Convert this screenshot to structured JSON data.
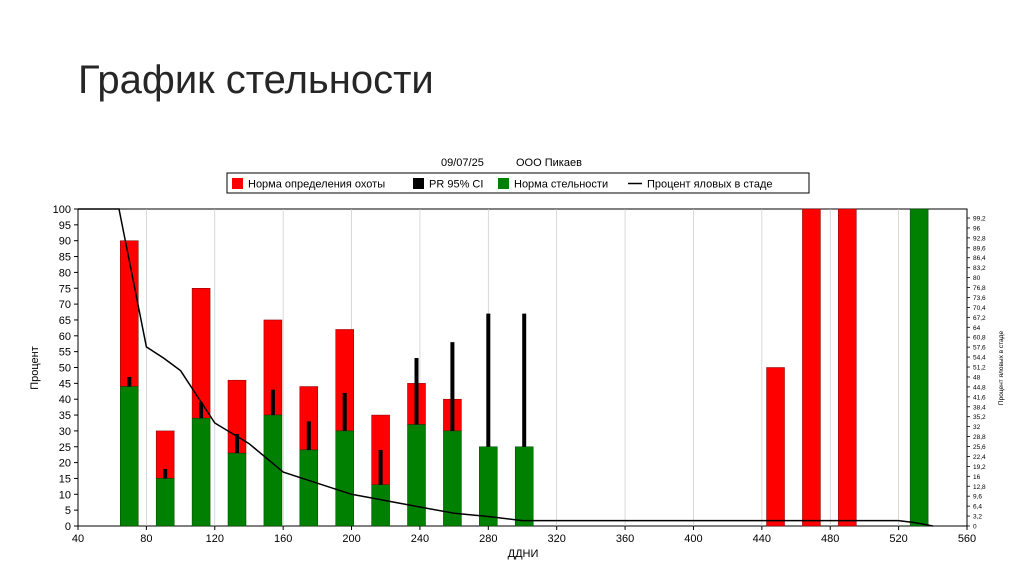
{
  "slide": {
    "title": "График стельности"
  },
  "colors": {
    "red": "#ff0000",
    "green": "#008000",
    "black": "#000000",
    "grid": "#c8c8c8"
  },
  "chart_data": {
    "type": "bar",
    "header": {
      "date": "09/07/25",
      "company": "ООО Пикаев"
    },
    "legend": [
      {
        "name": "Норма определения охоты",
        "color": "#ff0000",
        "kind": "box"
      },
      {
        "name": "PR 95% CI",
        "color": "#000000",
        "kind": "box"
      },
      {
        "name": "Норма стельности",
        "color": "#008000",
        "kind": "box"
      },
      {
        "name": "Процент яловых в стаде",
        "color": "#000000",
        "kind": "line"
      }
    ],
    "xlabel": "ДДНИ",
    "ylabel": "Процент",
    "ylabel_right": "Процент яловых в стаде",
    "xlim": [
      40,
      560
    ],
    "ylim": [
      0,
      100
    ],
    "x_ticks": [
      40,
      80,
      120,
      160,
      200,
      240,
      280,
      320,
      360,
      400,
      440,
      480,
      520,
      560
    ],
    "y_ticks": [
      0,
      5,
      10,
      15,
      20,
      25,
      30,
      35,
      40,
      45,
      50,
      55,
      60,
      65,
      70,
      75,
      80,
      85,
      90,
      95,
      100
    ],
    "right_ticks": [
      "0",
      "3,2",
      "6,4",
      "9,6",
      "12,8",
      "16",
      "19,2",
      "22,4",
      "25,6",
      "28,8",
      "32",
      "35,2",
      "38,4",
      "41,6",
      "44,8",
      "48",
      "51,2",
      "54,4",
      "57,6",
      "60,8",
      "64",
      "67,2",
      "70,4",
      "73,6",
      "76,8",
      "80",
      "83,2",
      "86,4",
      "89,6",
      "92,8",
      "96",
      "99,2"
    ],
    "bars": [
      {
        "x": 70,
        "heat_rate": 90,
        "preg_rate": 44,
        "ci": [
          44,
          47
        ]
      },
      {
        "x": 91,
        "heat_rate": 30,
        "preg_rate": 15,
        "ci": [
          15,
          18
        ]
      },
      {
        "x": 112,
        "heat_rate": 75,
        "preg_rate": 34,
        "ci": [
          34,
          39
        ]
      },
      {
        "x": 133,
        "heat_rate": 46,
        "preg_rate": 23,
        "ci": [
          23,
          29
        ]
      },
      {
        "x": 154,
        "heat_rate": 65,
        "preg_rate": 35,
        "ci": [
          35,
          43
        ]
      },
      {
        "x": 175,
        "heat_rate": 44,
        "preg_rate": 24,
        "ci": [
          24,
          33
        ]
      },
      {
        "x": 196,
        "heat_rate": 62,
        "preg_rate": 30,
        "ci": [
          30,
          42
        ]
      },
      {
        "x": 217,
        "heat_rate": 35,
        "preg_rate": 13,
        "ci": [
          13,
          24
        ]
      },
      {
        "x": 238,
        "heat_rate": 45,
        "preg_rate": 32,
        "ci": [
          32,
          53
        ]
      },
      {
        "x": 259,
        "heat_rate": 40,
        "preg_rate": 30,
        "ci": [
          30,
          58
        ]
      },
      {
        "x": 280,
        "heat_rate": 25,
        "preg_rate": 25,
        "ci": [
          25,
          67
        ]
      },
      {
        "x": 301,
        "heat_rate": 25,
        "preg_rate": 25,
        "ci": [
          25,
          67
        ]
      },
      {
        "x": 448,
        "heat_rate": 50,
        "preg_rate": 0,
        "ci": null
      },
      {
        "x": 469,
        "heat_rate": 100,
        "preg_rate": 0,
        "ci": null
      },
      {
        "x": 490,
        "heat_rate": 100,
        "preg_rate": 0,
        "ci": null
      },
      {
        "x": 532,
        "heat_rate": 100,
        "preg_rate": 100,
        "ci": null
      }
    ],
    "open_line": {
      "name": "Процент яловых в стаде",
      "x": [
        40,
        60,
        64,
        80,
        90,
        100,
        120,
        140,
        160,
        180,
        200,
        220,
        240,
        260,
        280,
        300,
        320,
        440,
        520,
        530,
        540
      ],
      "y": [
        100,
        100,
        100,
        56.5,
        53,
        49,
        32.5,
        26,
        17,
        13.5,
        10,
        8,
        6,
        4,
        3,
        1.7,
        1.7,
        1.7,
        1.7,
        1,
        0
      ]
    },
    "grid": true,
    "legend_position": "top"
  }
}
